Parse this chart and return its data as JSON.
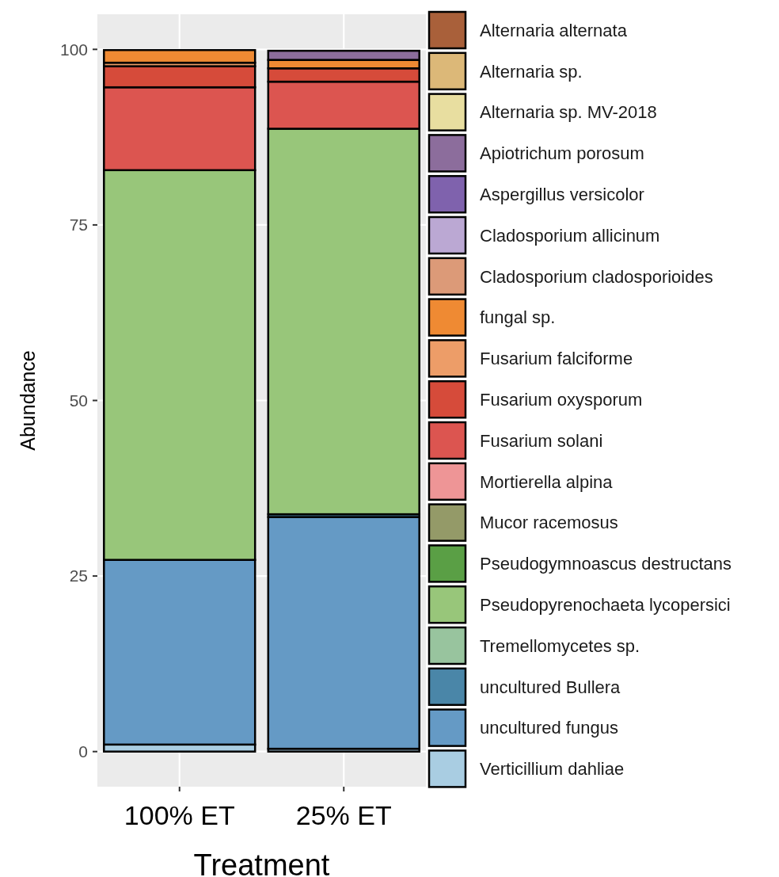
{
  "chart_data": {
    "type": "bar",
    "stacked": true,
    "xlabel": "Treatment",
    "ylabel": "Abundance",
    "categories": [
      "100% ET",
      "25% ET"
    ],
    "ylim": [
      -5,
      105
    ],
    "yticks": [
      0,
      25,
      50,
      75,
      100
    ],
    "grid": true,
    "legend": "right",
    "series": [
      {
        "name": "Verticillium dahliae",
        "color": "#a9cde2",
        "values": [
          1.0,
          0.4
        ]
      },
      {
        "name": "uncultured fungus",
        "color": "#659ac5",
        "values": [
          26.3,
          33.0
        ]
      },
      {
        "name": "uncultured Bullera",
        "color": "#4a86a8",
        "values": [
          0,
          0.4
        ]
      },
      {
        "name": "Tremellomycetes sp.",
        "color": "#98c49e",
        "values": [
          0,
          0
        ]
      },
      {
        "name": "Pseudopyrenochaeta lycopersici",
        "color": "#98c67a",
        "values": [
          55.5,
          54.9
        ]
      },
      {
        "name": "Pseudogymnoascus destructans",
        "color": "#5a9f45",
        "values": [
          0,
          0
        ]
      },
      {
        "name": "Mucor racemosus",
        "color": "#949a68",
        "values": [
          0,
          0
        ]
      },
      {
        "name": "Mortierella alpina",
        "color": "#ee9596",
        "values": [
          0,
          0
        ]
      },
      {
        "name": "Fusarium solani",
        "color": "#dc5550",
        "values": [
          11.8,
          6.7
        ]
      },
      {
        "name": "Fusarium oxysporum",
        "color": "#d64b3a",
        "values": [
          3.0,
          1.9
        ]
      },
      {
        "name": "Fusarium falciforme",
        "color": "#ed9d68",
        "values": [
          0.5,
          0
        ]
      },
      {
        "name": "fungal sp.",
        "color": "#ef8a33",
        "values": [
          1.8,
          1.2
        ]
      },
      {
        "name": "Cladosporium cladosporioides",
        "color": "#dc9a78",
        "values": [
          0,
          0
        ]
      },
      {
        "name": "Cladosporium allicinum",
        "color": "#bba8d3",
        "values": [
          0,
          0
        ]
      },
      {
        "name": "Aspergillus versicolor",
        "color": "#7f62ad",
        "values": [
          0,
          0
        ]
      },
      {
        "name": "Apiotrichum porosum",
        "color": "#8c6d9c",
        "values": [
          0,
          1.3
        ]
      },
      {
        "name": "Alternaria sp. MV-2018",
        "color": "#e8dea0",
        "values": [
          0,
          0
        ]
      },
      {
        "name": "Alternaria sp.",
        "color": "#dcb878",
        "values": [
          0,
          0
        ]
      },
      {
        "name": "Alternaria alternata",
        "color": "#a9603a",
        "values": [
          0,
          0
        ]
      }
    ]
  }
}
